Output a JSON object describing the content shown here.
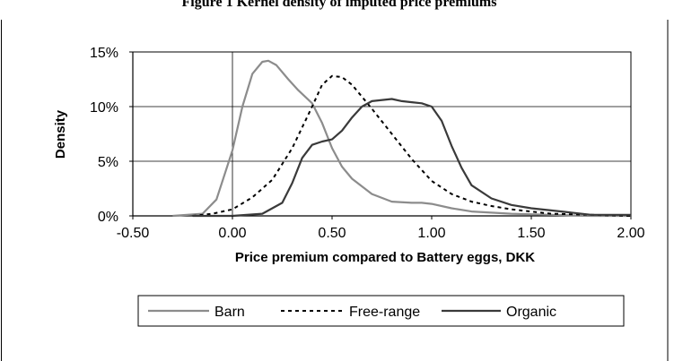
{
  "chart_data": {
    "type": "line",
    "title": "Figure 1 Kernel density of imputed price premiums",
    "xlabel": "Price premium compared to Battery eggs, DKK",
    "ylabel": "Density",
    "xlim": [
      -0.5,
      2.0
    ],
    "ylim": [
      0,
      0.15
    ],
    "x_ticks": [
      "-0.50",
      "0.00",
      "0.50",
      "1.00",
      "1.50",
      "2.00"
    ],
    "y_ticks": [
      "0%",
      "5%",
      "10%",
      "15%"
    ],
    "grid": "horizontal",
    "legend_position": "bottom",
    "series": [
      {
        "name": "Barn",
        "color": "#8c8c8c",
        "style": "solid",
        "x": [
          -0.3,
          -0.15,
          -0.08,
          0.0,
          0.05,
          0.1,
          0.15,
          0.18,
          0.22,
          0.28,
          0.33,
          0.4,
          0.45,
          0.5,
          0.55,
          0.6,
          0.7,
          0.8,
          0.9,
          0.95,
          1.0,
          1.1,
          1.2,
          1.4,
          1.6,
          1.8,
          2.0
        ],
        "values": [
          0.0,
          0.002,
          0.015,
          0.06,
          0.1,
          0.13,
          0.141,
          0.142,
          0.138,
          0.125,
          0.115,
          0.103,
          0.085,
          0.062,
          0.045,
          0.034,
          0.02,
          0.013,
          0.012,
          0.012,
          0.011,
          0.007,
          0.004,
          0.002,
          0.001,
          0.0,
          0.0
        ]
      },
      {
        "name": "Free-range",
        "color": "#000000",
        "style": "dashed",
        "x": [
          -0.2,
          -0.1,
          0.0,
          0.1,
          0.2,
          0.3,
          0.4,
          0.45,
          0.5,
          0.55,
          0.6,
          0.7,
          0.8,
          0.9,
          1.0,
          1.1,
          1.2,
          1.3,
          1.4,
          1.6,
          1.8,
          2.0
        ],
        "values": [
          0.0,
          0.002,
          0.006,
          0.017,
          0.033,
          0.062,
          0.1,
          0.12,
          0.128,
          0.127,
          0.12,
          0.098,
          0.075,
          0.052,
          0.032,
          0.02,
          0.013,
          0.009,
          0.006,
          0.002,
          0.001,
          0.0
        ]
      },
      {
        "name": "Organic",
        "color": "#3a3a3a",
        "style": "solid",
        "x": [
          -0.2,
          0.0,
          0.15,
          0.25,
          0.3,
          0.35,
          0.4,
          0.45,
          0.5,
          0.55,
          0.6,
          0.65,
          0.7,
          0.8,
          0.85,
          0.9,
          0.95,
          1.0,
          1.05,
          1.1,
          1.15,
          1.2,
          1.3,
          1.4,
          1.5,
          1.6,
          1.7,
          1.8,
          2.0
        ],
        "values": [
          0.0,
          0.0,
          0.002,
          0.012,
          0.03,
          0.053,
          0.065,
          0.068,
          0.07,
          0.078,
          0.09,
          0.1,
          0.105,
          0.107,
          0.105,
          0.104,
          0.103,
          0.1,
          0.087,
          0.064,
          0.044,
          0.028,
          0.016,
          0.01,
          0.007,
          0.005,
          0.003,
          0.001,
          0.001
        ]
      }
    ]
  }
}
